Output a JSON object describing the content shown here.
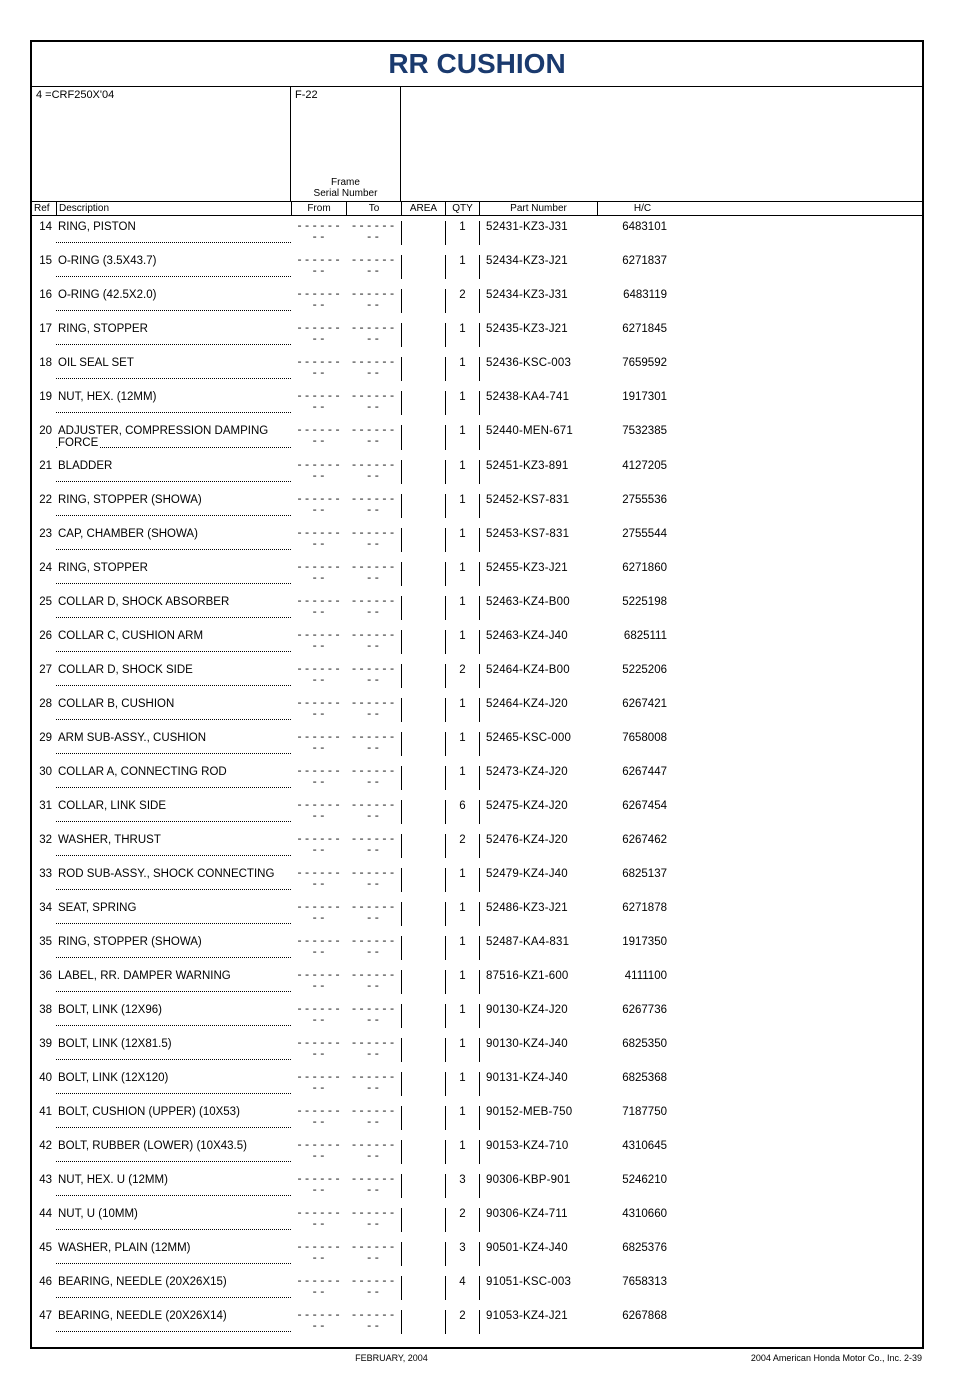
{
  "title": "RR CUSHION",
  "model_note": "4 =CRF250X'04",
  "fcode": "F-22",
  "frame_label_line1": "Frame",
  "frame_label_line2": "Serial Number",
  "headers": {
    "ref": "Ref",
    "desc": "Description",
    "from": "From",
    "to": "To",
    "area": "AREA",
    "qty": "QTY",
    "part": "Part Number",
    "hc": "H/C"
  },
  "dash": "--------",
  "rows": [
    {
      "ref": "14",
      "desc": "RING, PISTON",
      "qty": "1",
      "part": "52431-KZ3-J31",
      "hc": "6483101"
    },
    {
      "ref": "15",
      "desc": "O-RING (3.5X43.7)",
      "qty": "1",
      "part": "52434-KZ3-J21",
      "hc": "6271837"
    },
    {
      "ref": "16",
      "desc": "O-RING (42.5X2.0)",
      "qty": "2",
      "part": "52434-KZ3-J31",
      "hc": "6483119"
    },
    {
      "ref": "17",
      "desc": "RING, STOPPER",
      "qty": "1",
      "part": "52435-KZ3-J21",
      "hc": "6271845"
    },
    {
      "ref": "18",
      "desc": "OIL SEAL SET",
      "qty": "1",
      "part": "52436-KSC-003",
      "hc": "7659592"
    },
    {
      "ref": "19",
      "desc": "NUT, HEX. (12MM)",
      "qty": "1",
      "part": "52438-KA4-741",
      "hc": "1917301"
    },
    {
      "ref": "20",
      "desc": "ADJUSTER, COMPRESSION DAMPING FORCE",
      "qty": "1",
      "part": "52440-MEN-671",
      "hc": "7532385",
      "twoLine": true
    },
    {
      "ref": "21",
      "desc": "BLADDER",
      "qty": "1",
      "part": "52451-KZ3-891",
      "hc": "4127205"
    },
    {
      "ref": "22",
      "desc": "RING, STOPPER (SHOWA)",
      "qty": "1",
      "part": "52452-KS7-831",
      "hc": "2755536"
    },
    {
      "ref": "23",
      "desc": "CAP, CHAMBER (SHOWA)",
      "qty": "1",
      "part": "52453-KS7-831",
      "hc": "2755544"
    },
    {
      "ref": "24",
      "desc": "RING, STOPPER",
      "qty": "1",
      "part": "52455-KZ3-J21",
      "hc": "6271860"
    },
    {
      "ref": "25",
      "desc": "COLLAR D, SHOCK ABSORBER",
      "qty": "1",
      "part": "52463-KZ4-B00",
      "hc": "5225198"
    },
    {
      "ref": "26",
      "desc": "COLLAR C, CUSHION ARM",
      "qty": "1",
      "part": "52463-KZ4-J40",
      "hc": "6825111"
    },
    {
      "ref": "27",
      "desc": "COLLAR D, SHOCK SIDE",
      "qty": "2",
      "part": "52464-KZ4-B00",
      "hc": "5225206"
    },
    {
      "ref": "28",
      "desc": "COLLAR B, CUSHION",
      "qty": "1",
      "part": "52464-KZ4-J20",
      "hc": "6267421"
    },
    {
      "ref": "29",
      "desc": "ARM SUB-ASSY., CUSHION",
      "qty": "1",
      "part": "52465-KSC-000",
      "hc": "7658008"
    },
    {
      "ref": "30",
      "desc": "COLLAR A, CONNECTING ROD",
      "qty": "1",
      "part": "52473-KZ4-J20",
      "hc": "6267447"
    },
    {
      "ref": "31",
      "desc": "COLLAR, LINK SIDE",
      "qty": "6",
      "part": "52475-KZ4-J20",
      "hc": "6267454"
    },
    {
      "ref": "32",
      "desc": "WASHER, THRUST",
      "qty": "2",
      "part": "52476-KZ4-J20",
      "hc": "6267462"
    },
    {
      "ref": "33",
      "desc": "ROD SUB-ASSY., SHOCK CONNECTING",
      "qty": "1",
      "part": "52479-KZ4-J40",
      "hc": "6825137"
    },
    {
      "ref": "34",
      "desc": "SEAT, SPRING",
      "qty": "1",
      "part": "52486-KZ3-J21",
      "hc": "6271878"
    },
    {
      "ref": "35",
      "desc": "RING, STOPPER (SHOWA)",
      "qty": "1",
      "part": "52487-KA4-831",
      "hc": "1917350"
    },
    {
      "ref": "36",
      "desc": "LABEL, RR. DAMPER WARNING",
      "qty": "1",
      "part": "87516-KZ1-600",
      "hc": "4111100"
    },
    {
      "ref": "38",
      "desc": "BOLT, LINK (12X96)",
      "qty": "1",
      "part": "90130-KZ4-J20",
      "hc": "6267736"
    },
    {
      "ref": "39",
      "desc": "BOLT, LINK (12X81.5)",
      "qty": "1",
      "part": "90130-KZ4-J40",
      "hc": "6825350"
    },
    {
      "ref": "40",
      "desc": "BOLT, LINK (12X120)",
      "qty": "1",
      "part": "90131-KZ4-J40",
      "hc": "6825368"
    },
    {
      "ref": "41",
      "desc": "BOLT, CUSHION (UPPER) (10X53)",
      "qty": "1",
      "part": "90152-MEB-750",
      "hc": "7187750"
    },
    {
      "ref": "42",
      "desc": "BOLT, RUBBER (LOWER) (10X43.5)",
      "qty": "1",
      "part": "90153-KZ4-710",
      "hc": "4310645"
    },
    {
      "ref": "43",
      "desc": "NUT, HEX. U (12MM)",
      "qty": "3",
      "part": "90306-KBP-901",
      "hc": "5246210"
    },
    {
      "ref": "44",
      "desc": "NUT, U (10MM)",
      "qty": "2",
      "part": "90306-KZ4-711",
      "hc": "4310660"
    },
    {
      "ref": "45",
      "desc": "WASHER, PLAIN (12MM)",
      "qty": "3",
      "part": "90501-KZ4-J40",
      "hc": "6825376"
    },
    {
      "ref": "46",
      "desc": "BEARING, NEEDLE (20X26X15)",
      "qty": "4",
      "part": "91051-KSC-003",
      "hc": "7658313"
    },
    {
      "ref": "47",
      "desc": "BEARING, NEEDLE (20X26X14)",
      "qty": "2",
      "part": "91053-KZ4-J21",
      "hc": "6267868"
    }
  ],
  "footer": {
    "center": "FEBRUARY, 2004",
    "right": "2004  American Honda Motor Co., Inc.    2-39"
  }
}
